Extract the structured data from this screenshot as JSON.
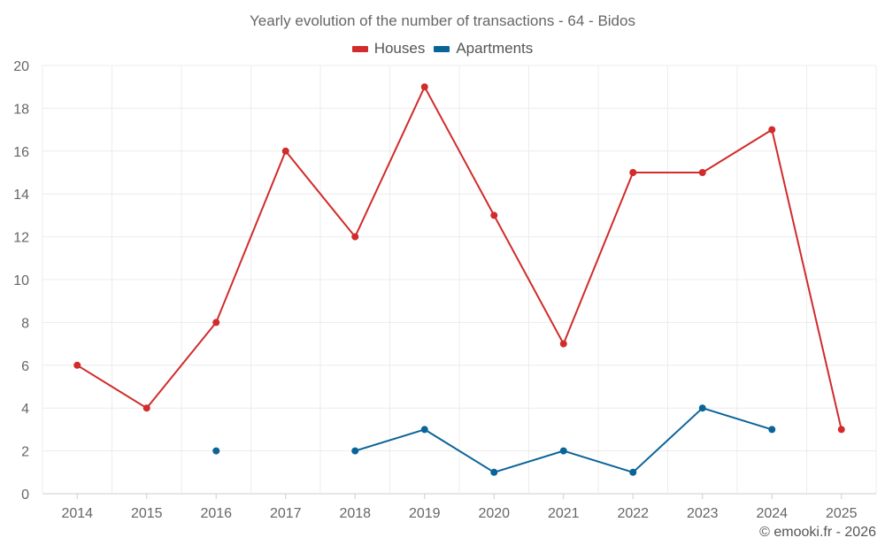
{
  "chart_data": {
    "type": "line",
    "title": "Yearly evolution of the number of transactions - 64 - Bidos",
    "xlabel": "",
    "ylabel": "",
    "categories": [
      "2014",
      "2015",
      "2016",
      "2017",
      "2018",
      "2019",
      "2020",
      "2021",
      "2022",
      "2023",
      "2024",
      "2025"
    ],
    "ylim": [
      0,
      20
    ],
    "yticks": [
      0,
      2,
      4,
      6,
      8,
      10,
      12,
      14,
      16,
      18,
      20
    ],
    "grid": true,
    "legend_position": "top-center",
    "series": [
      {
        "name": "Houses",
        "color": "#d12b2b",
        "values": [
          6,
          4,
          8,
          16,
          12,
          19,
          13,
          7,
          15,
          15,
          17,
          3
        ]
      },
      {
        "name": "Apartments",
        "color": "#0b6498",
        "values": [
          null,
          null,
          2,
          null,
          2,
          3,
          1,
          2,
          1,
          4,
          3,
          null
        ]
      }
    ]
  },
  "credit": "© emooki.fr - 2026"
}
